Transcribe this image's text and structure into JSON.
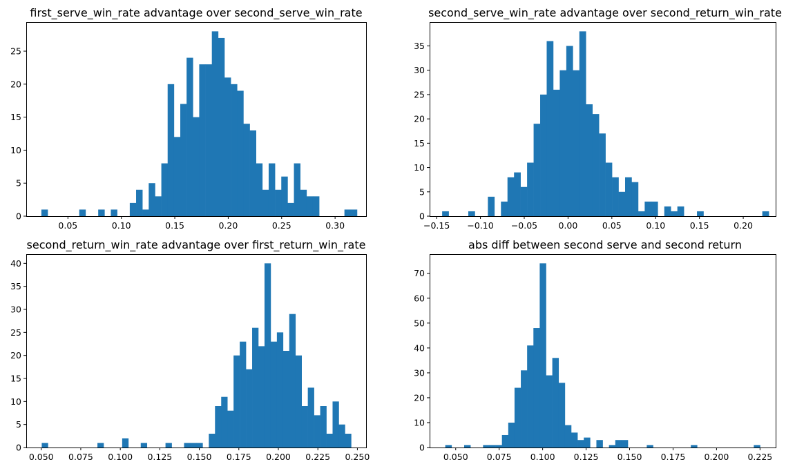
{
  "chart_data": [
    {
      "type": "bar",
      "title": "first_serve_win_rate advantage over second_serve_win_rate",
      "xlabel": "",
      "ylabel": "",
      "xlim": [
        0.011,
        0.329
      ],
      "ylim": [
        0,
        29.4
      ],
      "xticks": [
        0.05,
        0.1,
        0.15,
        0.2,
        0.25,
        0.3
      ],
      "xtick_labels": [
        "0.05",
        "0.10",
        "0.15",
        "0.20",
        "0.25",
        "0.30"
      ],
      "yticks": [
        0,
        5,
        10,
        15,
        20,
        25
      ],
      "ytick_labels": [
        "0",
        "5",
        "10",
        "15",
        "20",
        "25"
      ],
      "color": "#1f77b4",
      "bin_start": 0.02516,
      "bin_width": 0.005908,
      "counts": [
        1,
        0,
        0,
        0,
        0,
        0,
        1,
        0,
        0,
        1,
        0,
        1,
        0,
        0,
        2,
        4,
        1,
        5,
        3,
        8,
        20,
        12,
        17,
        24,
        15,
        23,
        23,
        28,
        27,
        21,
        20,
        19,
        14,
        13,
        8,
        4,
        8,
        4,
        6,
        2,
        8,
        4,
        3,
        3,
        0,
        0,
        0,
        0,
        1,
        1
      ]
    },
    {
      "type": "bar",
      "title": "second_serve_win_rate advantage over second_return_win_rate",
      "xlabel": "",
      "ylabel": "",
      "xlim": [
        -0.158,
        0.237
      ],
      "ylim": [
        0,
        39.9
      ],
      "xticks": [
        -0.15,
        -0.1,
        -0.05,
        0.0,
        0.05,
        0.1,
        0.15,
        0.2
      ],
      "xtick_labels": [
        "−0.15",
        "−0.10",
        "−0.05",
        "0.00",
        "0.05",
        "0.10",
        "0.15",
        "0.20"
      ],
      "yticks": [
        0,
        5,
        10,
        15,
        20,
        25,
        30,
        35
      ],
      "ytick_labels": [
        "0",
        "5",
        "10",
        "15",
        "20",
        "25",
        "30",
        "35"
      ],
      "color": "#1f77b4",
      "bin_start": -0.1437,
      "bin_width": 0.007458,
      "counts": [
        1,
        0,
        0,
        0,
        1,
        0,
        0,
        4,
        0,
        3,
        8,
        9,
        6,
        11,
        19,
        25,
        36,
        26,
        30,
        35,
        30,
        38,
        23,
        21,
        17,
        11,
        8,
        5,
        8,
        7,
        1,
        3,
        3,
        0,
        2,
        1,
        2,
        0,
        0,
        1,
        0,
        0,
        0,
        0,
        0,
        0,
        0,
        0,
        0,
        1
      ]
    },
    {
      "type": "bar",
      "title": "second_return_win_rate advantage over first_return_win_rate",
      "xlabel": "",
      "ylabel": "",
      "xlim": [
        0.0405,
        0.2555
      ],
      "ylim": [
        0,
        42
      ],
      "xticks": [
        0.05,
        0.075,
        0.1,
        0.125,
        0.15,
        0.175,
        0.2,
        0.225,
        0.25
      ],
      "xtick_labels": [
        "0.050",
        "0.075",
        "0.100",
        "0.125",
        "0.150",
        "0.175",
        "0.200",
        "0.225",
        "0.250"
      ],
      "yticks": [
        0,
        5,
        10,
        15,
        20,
        25,
        30,
        35,
        40
      ],
      "ytick_labels": [
        "0",
        "5",
        "10",
        "15",
        "20",
        "25",
        "30",
        "35",
        "40"
      ],
      "color": "#1f77b4",
      "bin_start": 0.0503,
      "bin_width": 0.003915,
      "counts": [
        1,
        0,
        0,
        0,
        0,
        0,
        0,
        0,
        0,
        1,
        0,
        0,
        0,
        2,
        0,
        0,
        1,
        0,
        0,
        0,
        1,
        0,
        0,
        1,
        1,
        1,
        0,
        3,
        9,
        11,
        8,
        20,
        23,
        17,
        26,
        22,
        40,
        23,
        25,
        21,
        29,
        20,
        9,
        13,
        7,
        9,
        3,
        10,
        5,
        3
      ]
    },
    {
      "type": "bar",
      "title": "abs diff between second serve and second return",
      "xlabel": "",
      "ylabel": "",
      "xlim": [
        0.035,
        0.234
      ],
      "ylim": [
        0,
        77.7
      ],
      "xticks": [
        0.05,
        0.075,
        0.1,
        0.125,
        0.15,
        0.175,
        0.2,
        0.225
      ],
      "xtick_labels": [
        "0.050",
        "0.075",
        "0.100",
        "0.125",
        "0.150",
        "0.175",
        "0.200",
        "0.225"
      ],
      "yticks": [
        0,
        10,
        20,
        30,
        40,
        50,
        60,
        70
      ],
      "ytick_labels": [
        "0",
        "10",
        "20",
        "30",
        "40",
        "50",
        "60",
        "70"
      ],
      "color": "#1f77b4",
      "bin_start": 0.044,
      "bin_width": 0.003621,
      "counts": [
        1,
        0,
        0,
        1,
        0,
        0,
        1,
        1,
        1,
        5,
        10,
        24,
        31,
        41,
        48,
        74,
        29,
        36,
        26,
        9,
        6,
        3,
        4,
        0,
        3,
        0,
        1,
        3,
        3,
        0,
        0,
        0,
        1,
        0,
        0,
        0,
        0,
        0,
        0,
        1,
        0,
        0,
        0,
        0,
        0,
        0,
        0,
        0,
        0,
        1
      ]
    }
  ]
}
